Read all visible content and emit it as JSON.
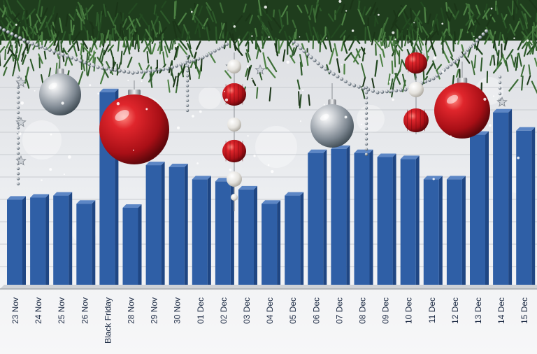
{
  "chart_data": {
    "type": "bar",
    "title": "",
    "xlabel": "",
    "ylabel": "",
    "ylim": [
      0,
      100
    ],
    "grid": true,
    "legend": "none",
    "categories": [
      "23 Nov",
      "24 Nov",
      "25 Nov",
      "26 Nov",
      "Black Friday",
      "28 Nov",
      "29 Nov",
      "30 Nov",
      "01 Dec",
      "02 Dec",
      "03 Dec",
      "04 Dec",
      "05 Dec",
      "06 Dec",
      "07 Dec",
      "08 Dec",
      "09 Dec",
      "10 Dec",
      "11 Dec",
      "12 Dec",
      "13 Dec",
      "14 Dec",
      "15 Dec"
    ],
    "values": [
      44,
      45,
      46,
      42,
      97,
      40,
      61,
      60,
      54,
      53,
      49,
      42,
      46,
      67,
      69,
      67,
      65,
      64,
      54,
      54,
      76,
      87,
      78
    ]
  },
  "colors": {
    "bar": "#2f5fa6",
    "bar_top": "#5c86c5",
    "bar_side": "#1f4683",
    "grid": "#c9ccd1",
    "ornament_red": "#c0141c",
    "ornament_silver": "#b9bdc2",
    "foliage": "#2d5a2a"
  },
  "decorations": {
    "foliage": "fir-branches-icon",
    "ornament_red": "red-bauble-icon",
    "ornament_silver": "silver-bauble-icon",
    "garland": "bead-garland-icon",
    "star": "star-icon"
  }
}
